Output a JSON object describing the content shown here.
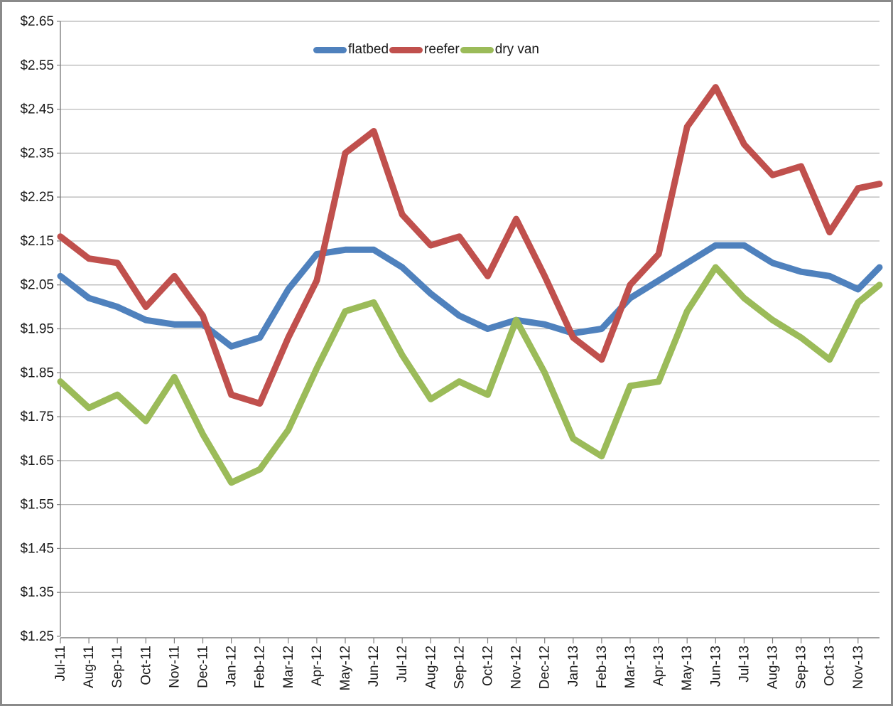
{
  "chart_data": {
    "type": "line",
    "title": "",
    "xlabel": "",
    "ylabel": "",
    "x": [
      "Jul-11",
      "Aug-11",
      "Sep-11",
      "Oct-11",
      "Nov-11",
      "Dec-11",
      "Jan-12",
      "Feb-12",
      "Mar-12",
      "Apr-12",
      "May-12",
      "Jun-12",
      "Jul-12",
      "Aug-12",
      "Sep-12",
      "Oct-12",
      "Nov-12",
      "Dec-12",
      "Jan-13",
      "Feb-13",
      "Mar-13",
      "Apr-13",
      "May-13",
      "Jun-13",
      "Jul-13",
      "Aug-13",
      "Sep-13",
      "Oct-13",
      "Nov-13"
    ],
    "series": [
      {
        "name": "flatbed",
        "color": "#4F81BD",
        "values": [
          2.07,
          2.02,
          2.0,
          1.97,
          1.96,
          1.96,
          1.91,
          1.93,
          2.04,
          2.12,
          2.13,
          2.13,
          2.09,
          2.03,
          1.98,
          1.95,
          1.97,
          1.96,
          1.94,
          1.95,
          2.02,
          2.06,
          2.1,
          2.14,
          2.14,
          2.1,
          2.08,
          2.07,
          2.04
        ],
        "edge_value": 2.09
      },
      {
        "name": "reefer",
        "color": "#C0504D",
        "values": [
          2.16,
          2.11,
          2.1,
          2.0,
          2.07,
          1.98,
          1.8,
          1.78,
          1.93,
          2.06,
          2.35,
          2.4,
          2.21,
          2.14,
          2.16,
          2.07,
          2.2,
          2.07,
          1.93,
          1.88,
          2.05,
          2.12,
          2.41,
          2.5,
          2.37,
          2.3,
          2.32,
          2.17,
          2.27
        ],
        "edge_value": 2.28
      },
      {
        "name": "dry van",
        "color": "#9BBB59",
        "values": [
          1.83,
          1.77,
          1.8,
          1.74,
          1.84,
          1.71,
          1.6,
          1.63,
          1.72,
          1.86,
          1.99,
          2.01,
          1.89,
          1.79,
          1.83,
          1.8,
          1.97,
          1.85,
          1.7,
          1.66,
          1.82,
          1.83,
          1.99,
          2.09,
          2.02,
          1.97,
          1.93,
          1.88,
          2.01
        ],
        "edge_value": 2.05
      }
    ],
    "ylim": [
      1.25,
      2.65
    ],
    "ytick_step": 0.1,
    "ytick_labels": [
      "$1.25",
      "$1.35",
      "$1.45",
      "$1.55",
      "$1.65",
      "$1.75",
      "$1.85",
      "$1.95",
      "$2.05",
      "$2.15",
      "$2.25",
      "$2.35",
      "$2.45",
      "$2.55",
      "$2.65"
    ],
    "legend_position": "top-center",
    "grid": "horizontal",
    "colors": {
      "gridline": "#b3b3b3",
      "axis": "#808080",
      "tick": "#808080",
      "label_text": "#1a1a1a"
    }
  }
}
